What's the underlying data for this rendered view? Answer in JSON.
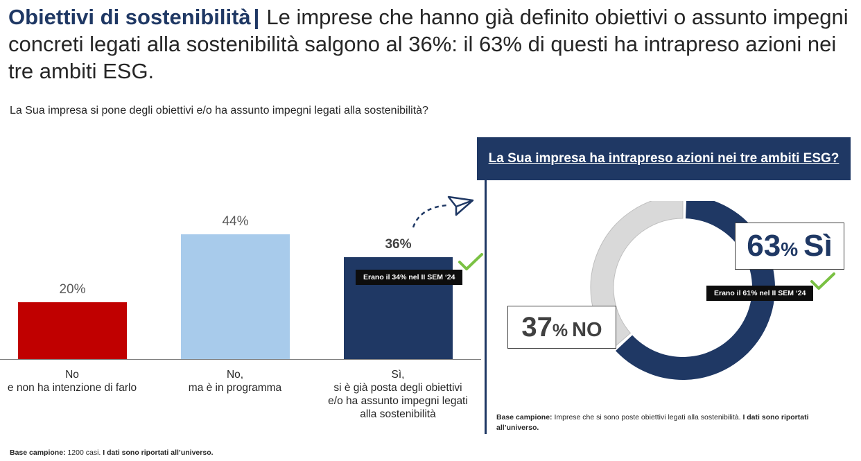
{
  "header": {
    "title": "Obiettivi di sostenibilità",
    "separator": "|",
    "headline": "Le imprese che hanno già definito obiettivi o assunto impegni concreti legati alla sostenibilità salgono al 36%: il 63% di questi ha intrapreso azioni nei tre ambiti ESG."
  },
  "question": "La Sua impresa si pone degli obiettivi e/o ha assunto impegni legati alla sostenibilità?",
  "chart_data": [
    {
      "type": "bar",
      "title": "La Sua impresa si pone degli obiettivi e/o ha assunto impegni legati alla sostenibilità?",
      "categories": [
        [
          "No",
          "e non ha intenzione di farlo"
        ],
        [
          "No,",
          "ma è in programma"
        ],
        [
          "Sì,",
          "si è già posta degli obiettivi",
          "e/o ha assunto impegni legati",
          "alla sostenibilità"
        ]
      ],
      "values": [
        20,
        44,
        36
      ],
      "value_labels": [
        "20%",
        "44%",
        "36%"
      ],
      "colors": [
        "#c00000",
        "#a8cbeb",
        "#1f3864"
      ],
      "ylim": [
        0,
        50
      ],
      "annotation": "Erano il 34% nel II SEM ‘24"
    },
    {
      "type": "pie",
      "title": "La Sua impresa ha intrapreso azioni nei tre ambiti ESG?",
      "labels": [
        "Sì",
        "NO"
      ],
      "values": [
        63,
        37
      ],
      "colors": [
        "#1f3864",
        "#d9d9d9"
      ],
      "annotation": "Erano il 61% nel II SEM ‘24"
    }
  ],
  "donut_labels": {
    "yes_value": "63",
    "yes_word": "Sì",
    "no_value": "37",
    "no_word": "NO",
    "unit": "%"
  },
  "footer": {
    "left_label": "Base campione:",
    "left_text": "1200 casi.",
    "left_bold": "I dati sono riportati all’universo.",
    "right_label": "Base campione:",
    "right_text": "Imprese che si sono poste obiettivi legati alla sostenibilità.",
    "right_bold": "I dati sono riportati all’universo."
  },
  "colors": {
    "navy": "#1f3864",
    "red": "#c00000",
    "lightblue": "#a8cbeb",
    "grey": "#d9d9d9",
    "check": "#7ac143"
  }
}
